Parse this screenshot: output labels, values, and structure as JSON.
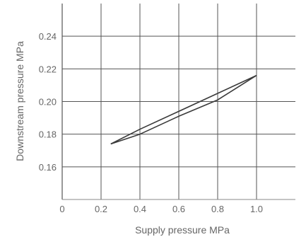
{
  "chart_data": {
    "type": "line",
    "title": "",
    "xlabel": "Supply pressure MPa",
    "ylabel": "Downstream pressure MPa",
    "xlim": [
      0,
      1.2
    ],
    "ylim": [
      0.14,
      0.26
    ],
    "x_ticks": [
      0,
      0.2,
      0.4,
      0.6,
      0.8,
      1.0
    ],
    "x_tick_labels": [
      "0",
      "0.2",
      "0.4",
      "0.6",
      "0.8",
      "1.0"
    ],
    "y_ticks": [
      0.16,
      0.18,
      0.2,
      0.22,
      0.24
    ],
    "y_tick_labels": [
      "0.16",
      "0.18",
      "0.20",
      "0.22",
      "0.24"
    ],
    "grid": true,
    "series": [
      {
        "x": [
          0.25,
          0.4,
          0.6,
          0.8,
          1.0
        ],
        "y": [
          0.174,
          0.183,
          0.194,
          0.205,
          0.216
        ]
      },
      {
        "x": [
          0.25,
          0.4,
          0.6,
          0.8,
          1.0
        ],
        "y": [
          0.174,
          0.18,
          0.191,
          0.201,
          0.216
        ]
      }
    ],
    "line_color": "#3a3a3a",
    "grid_color": "#555555"
  }
}
